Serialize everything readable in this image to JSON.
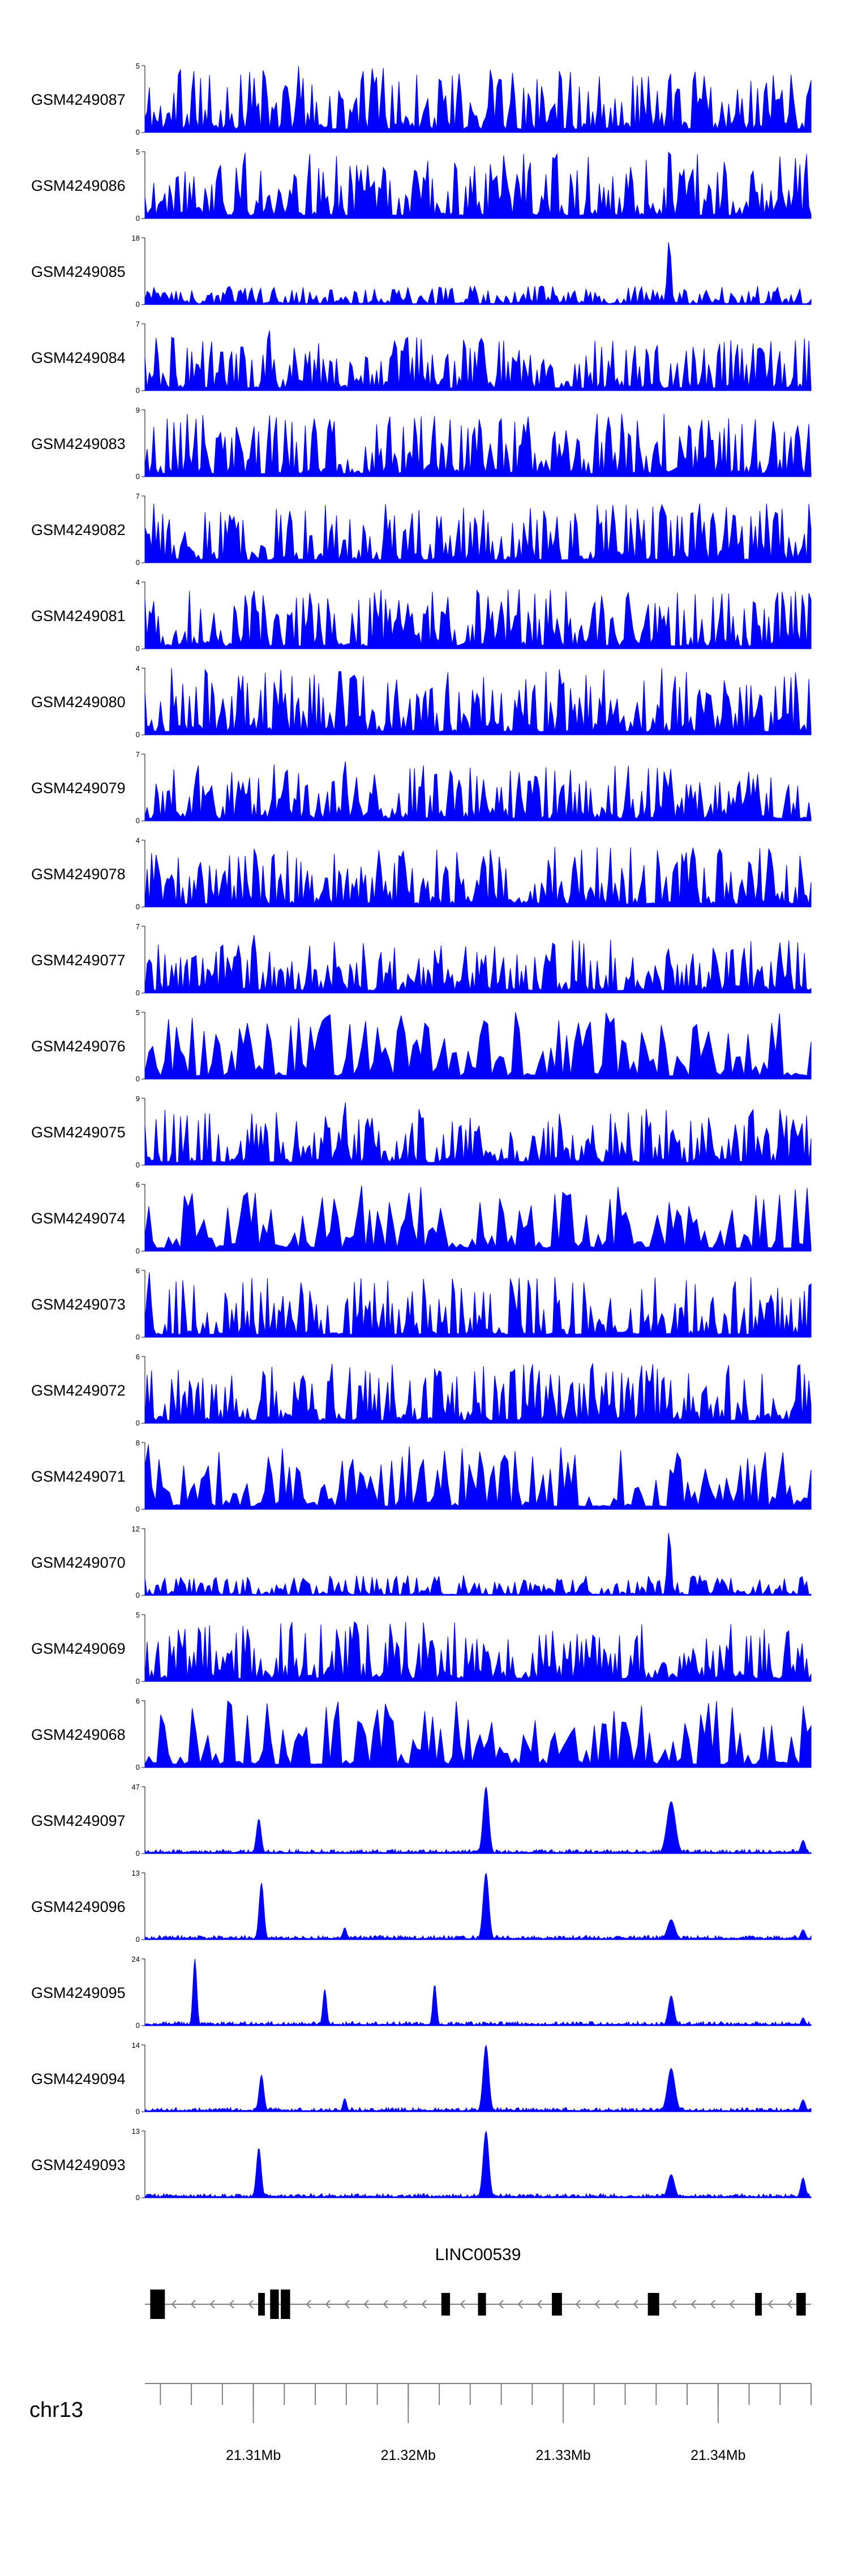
{
  "figure": {
    "kind": "genome-browser-tracks",
    "background": "#ffffff"
  },
  "colors": {
    "signal": "#0000ff",
    "gene": "#000000",
    "axis": "#808080",
    "text": "#000000"
  },
  "chart_data": {
    "type": "area",
    "subtype": "genome-coverage-tracks",
    "x_axis": {
      "chromosome": "chr13",
      "unit": "Mb",
      "start_mb": 21.303,
      "end_mb": 21.346,
      "major_ticks_mb": [
        21.31,
        21.32,
        21.33,
        21.34
      ],
      "tick_labels": [
        "21.31Mb",
        "21.32Mb",
        "21.33Mb",
        "21.34Mb"
      ],
      "minor_tick_step_mb": 0.002
    },
    "tracks": [
      {
        "label": "GSM4249087",
        "ylim": [
          0,
          5
        ],
        "style": "dense",
        "seed": 11,
        "base": 1.0
      },
      {
        "label": "GSM4249086",
        "ylim": [
          0,
          5
        ],
        "style": "dense",
        "seed": 22,
        "base": 1.0
      },
      {
        "label": "GSM4249085",
        "ylim": [
          0,
          18
        ],
        "style": "dense",
        "seed": 33,
        "base": 0.28,
        "peaks": [
          {
            "pos": 0.787,
            "h": 1.0,
            "w": 0.004
          }
        ]
      },
      {
        "label": "GSM4249084",
        "ylim": [
          0,
          7
        ],
        "style": "dense",
        "seed": 44,
        "base": 0.8,
        "peaks": [
          {
            "pos": 0.186,
            "h": 1.0,
            "w": 0.004
          }
        ]
      },
      {
        "label": "GSM4249083",
        "ylim": [
          0,
          9
        ],
        "style": "dense",
        "seed": 55,
        "base": 0.95
      },
      {
        "label": "GSM4249082",
        "ylim": [
          0,
          7
        ],
        "style": "dense",
        "seed": 66,
        "base": 0.9
      },
      {
        "label": "GSM4249081",
        "ylim": [
          0,
          4
        ],
        "style": "dense",
        "seed": 77,
        "base": 0.9,
        "peaks": [
          {
            "pos": 0.165,
            "h": 1.0,
            "w": 0.003
          }
        ]
      },
      {
        "label": "GSM4249080",
        "ylim": [
          0,
          4
        ],
        "style": "dense",
        "seed": 88,
        "base": 1.0
      },
      {
        "label": "GSM4249079",
        "ylim": [
          0,
          7
        ],
        "style": "dense",
        "seed": 99,
        "base": 0.85,
        "peaks": [
          {
            "pos": 0.3,
            "h": 0.95,
            "w": 0.004
          }
        ]
      },
      {
        "label": "GSM4249078",
        "ylim": [
          0,
          4
        ],
        "style": "dense",
        "seed": 110,
        "base": 0.9,
        "peaks": [
          {
            "pos": 0.165,
            "h": 1.0,
            "w": 0.003
          }
        ]
      },
      {
        "label": "GSM4249077",
        "ylim": [
          0,
          7
        ],
        "style": "dense",
        "seed": 121,
        "base": 0.8,
        "peaks": [
          {
            "pos": 0.165,
            "h": 1.0,
            "w": 0.003
          }
        ]
      },
      {
        "label": "GSM4249076",
        "ylim": [
          0,
          5
        ],
        "style": "dense",
        "seed": 132,
        "base": 1.0,
        "points": 170
      },
      {
        "label": "GSM4249075",
        "ylim": [
          0,
          9
        ],
        "style": "dense",
        "seed": 143,
        "base": 0.85,
        "peaks": [
          {
            "pos": 0.3,
            "h": 1.0,
            "w": 0.004
          }
        ]
      },
      {
        "label": "GSM4249074",
        "ylim": [
          0,
          6
        ],
        "style": "dense",
        "seed": 154,
        "base": 1.0,
        "points": 170
      },
      {
        "label": "GSM4249073",
        "ylim": [
          0,
          6
        ],
        "style": "dense",
        "seed": 165,
        "base": 0.9,
        "peaks": [
          {
            "pos": 0.006,
            "h": 1.0,
            "w": 0.004
          }
        ]
      },
      {
        "label": "GSM4249072",
        "ylim": [
          0,
          6
        ],
        "style": "dense",
        "seed": 176,
        "base": 0.9,
        "peaks": [
          {
            "pos": 0.44,
            "h": 1.0,
            "w": 0.003
          }
        ]
      },
      {
        "label": "GSM4249071",
        "ylim": [
          0,
          8
        ],
        "style": "dense",
        "seed": 187,
        "base": 0.95,
        "points": 190,
        "peaks": [
          {
            "pos": 0.006,
            "h": 1.0,
            "w": 0.004
          }
        ]
      },
      {
        "label": "GSM4249070",
        "ylim": [
          0,
          12
        ],
        "style": "dense",
        "seed": 198,
        "base": 0.3,
        "peaks": [
          {
            "pos": 0.787,
            "h": 1.0,
            "w": 0.004
          }
        ]
      },
      {
        "label": "GSM4249069",
        "ylim": [
          0,
          5
        ],
        "style": "dense",
        "seed": 209,
        "base": 0.9
      },
      {
        "label": "GSM4249068",
        "ylim": [
          0,
          6
        ],
        "style": "dense",
        "seed": 220,
        "base": 1.0,
        "points": 170
      },
      {
        "label": "GSM4249097",
        "ylim": [
          0,
          47
        ],
        "style": "sparse",
        "seed": 231,
        "peaks": [
          {
            "pos": 0.171,
            "h": 0.52,
            "w": 0.005
          },
          {
            "pos": 0.512,
            "h": 1.0,
            "w": 0.006
          },
          {
            "pos": 0.79,
            "h": 0.78,
            "w": 0.009
          },
          {
            "pos": 0.988,
            "h": 0.2,
            "w": 0.005
          }
        ]
      },
      {
        "label": "GSM4249096",
        "ylim": [
          0,
          13
        ],
        "style": "sparse",
        "seed": 242,
        "peaks": [
          {
            "pos": 0.175,
            "h": 0.85,
            "w": 0.005
          },
          {
            "pos": 0.3,
            "h": 0.18,
            "w": 0.004
          },
          {
            "pos": 0.512,
            "h": 1.0,
            "w": 0.006
          },
          {
            "pos": 0.79,
            "h": 0.3,
            "w": 0.008
          },
          {
            "pos": 0.988,
            "h": 0.15,
            "w": 0.005
          }
        ]
      },
      {
        "label": "GSM4249095",
        "ylim": [
          0,
          24
        ],
        "style": "sparse",
        "seed": 253,
        "peaks": [
          {
            "pos": 0.075,
            "h": 1.0,
            "w": 0.004
          },
          {
            "pos": 0.27,
            "h": 0.55,
            "w": 0.004
          },
          {
            "pos": 0.435,
            "h": 0.62,
            "w": 0.004
          },
          {
            "pos": 0.79,
            "h": 0.45,
            "w": 0.006
          },
          {
            "pos": 0.988,
            "h": 0.12,
            "w": 0.004
          }
        ]
      },
      {
        "label": "GSM4249094",
        "ylim": [
          0,
          14
        ],
        "style": "sparse",
        "seed": 264,
        "peaks": [
          {
            "pos": 0.175,
            "h": 0.55,
            "w": 0.005
          },
          {
            "pos": 0.3,
            "h": 0.2,
            "w": 0.004
          },
          {
            "pos": 0.512,
            "h": 1.0,
            "w": 0.006
          },
          {
            "pos": 0.79,
            "h": 0.65,
            "w": 0.008
          },
          {
            "pos": 0.988,
            "h": 0.18,
            "w": 0.005
          }
        ]
      },
      {
        "label": "GSM4249093",
        "ylim": [
          0,
          13
        ],
        "style": "sparse",
        "seed": 275,
        "peaks": [
          {
            "pos": 0.171,
            "h": 0.75,
            "w": 0.005
          },
          {
            "pos": 0.512,
            "h": 1.0,
            "w": 0.006
          },
          {
            "pos": 0.79,
            "h": 0.35,
            "w": 0.007
          },
          {
            "pos": 0.988,
            "h": 0.3,
            "w": 0.005
          }
        ]
      }
    ],
    "gene_track": {
      "name": "LINC00539",
      "strand": "-",
      "exons": [
        {
          "start": 0.008,
          "end": 0.03,
          "tall": true
        },
        {
          "start": 0.17,
          "end": 0.18,
          "tall": false
        },
        {
          "start": 0.188,
          "end": 0.201,
          "tall": true
        },
        {
          "start": 0.204,
          "end": 0.218,
          "tall": true
        },
        {
          "start": 0.445,
          "end": 0.458,
          "tall": false
        },
        {
          "start": 0.5,
          "end": 0.512,
          "tall": false
        },
        {
          "start": 0.611,
          "end": 0.626,
          "tall": false
        },
        {
          "start": 0.755,
          "end": 0.772,
          "tall": false
        },
        {
          "start": 0.916,
          "end": 0.926,
          "tall": false
        },
        {
          "start": 0.978,
          "end": 0.992,
          "tall": false
        }
      ]
    }
  }
}
